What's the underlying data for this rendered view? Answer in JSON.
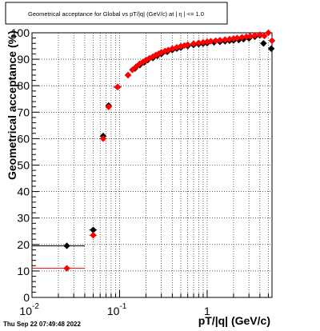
{
  "chart_data": {
    "type": "scatter",
    "title": "Geometrical acceptance for Global vs pT/|q| (GeV/c) at |  η  | <= 1.0",
    "xlabel": "pT/|q| (GeV/c)",
    "ylabel": "Geometrical acceptance (%)",
    "x_scale": "log",
    "xlim": [
      0.01,
      5.5
    ],
    "ylim": [
      0,
      100
    ],
    "grid": true,
    "x_ticks": [
      {
        "value": 0.01,
        "base": "10",
        "exp": "-2"
      },
      {
        "value": 0.1,
        "base": "10",
        "exp": "-1"
      },
      {
        "value": 1,
        "base": "1",
        "exp": ""
      }
    ],
    "y_ticks": [
      0,
      10,
      20,
      30,
      40,
      50,
      60,
      70,
      80,
      90,
      100
    ],
    "timestamp": "Thu Sep 22 07:49:48 2022",
    "series": [
      {
        "color": "#000000",
        "marker": "diamond",
        "points": [
          {
            "x": 0.025,
            "y": 19.5,
            "xerr": [
              0.01,
              0.04
            ]
          },
          {
            "x": 0.05,
            "y": 25.5,
            "xerr": [
              0.045,
              0.055
            ]
          },
          {
            "x": 0.065,
            "y": 61.0,
            "xerr": [
              0.06,
              0.07
            ]
          },
          {
            "x": 0.075,
            "y": 72.5,
            "xerr": [
              0.07,
              0.08
            ]
          },
          {
            "x": 0.095,
            "y": 79.5,
            "xerr": [
              0.085,
              0.105
            ]
          },
          {
            "x": 0.125,
            "y": 84.0
          },
          {
            "x": 0.15,
            "y": 86.5
          },
          {
            "x": 0.17,
            "y": 87.8
          },
          {
            "x": 0.19,
            "y": 88.8
          },
          {
            "x": 0.21,
            "y": 89.7
          },
          {
            "x": 0.24,
            "y": 90.5
          },
          {
            "x": 0.27,
            "y": 91.3
          },
          {
            "x": 0.3,
            "y": 92.0
          },
          {
            "x": 0.35,
            "y": 92.8
          },
          {
            "x": 0.4,
            "y": 93.5
          },
          {
            "x": 0.45,
            "y": 94.0
          },
          {
            "x": 0.5,
            "y": 94.4
          },
          {
            "x": 0.6,
            "y": 95.0
          },
          {
            "x": 0.7,
            "y": 95.4
          },
          {
            "x": 0.8,
            "y": 95.7
          },
          {
            "x": 0.9,
            "y": 95.9
          },
          {
            "x": 1.0,
            "y": 96.1
          },
          {
            "x": 1.2,
            "y": 96.4
          },
          {
            "x": 1.4,
            "y": 96.6
          },
          {
            "x": 1.6,
            "y": 96.8
          },
          {
            "x": 1.8,
            "y": 97.0
          },
          {
            "x": 2.0,
            "y": 97.1
          },
          {
            "x": 2.3,
            "y": 97.3
          },
          {
            "x": 2.6,
            "y": 97.6
          },
          {
            "x": 3.0,
            "y": 97.9
          },
          {
            "x": 3.5,
            "y": 98.5
          },
          {
            "x": 4.0,
            "y": 99.0
          },
          {
            "x": 4.4,
            "y": 96.0
          },
          {
            "x": 5.4,
            "y": 94.0
          }
        ]
      },
      {
        "color": "#ff0000",
        "marker": "diamond",
        "points": [
          {
            "x": 0.025,
            "y": 11.0,
            "xerr": [
              0.01,
              0.04
            ]
          },
          {
            "x": 0.05,
            "y": 23.5,
            "xerr": [
              0.045,
              0.055
            ]
          },
          {
            "x": 0.065,
            "y": 60.0,
            "xerr": [
              0.06,
              0.07
            ]
          },
          {
            "x": 0.075,
            "y": 72.0,
            "xerr": [
              0.07,
              0.08
            ]
          },
          {
            "x": 0.095,
            "y": 79.5,
            "xerr": [
              0.085,
              0.105
            ]
          },
          {
            "x": 0.125,
            "y": 84.0
          },
          {
            "x": 0.14,
            "y": 86.0
          },
          {
            "x": 0.155,
            "y": 87.2
          },
          {
            "x": 0.17,
            "y": 88.3
          },
          {
            "x": 0.185,
            "y": 89.0
          },
          {
            "x": 0.2,
            "y": 89.7
          },
          {
            "x": 0.22,
            "y": 90.4
          },
          {
            "x": 0.24,
            "y": 91.0
          },
          {
            "x": 0.26,
            "y": 91.6
          },
          {
            "x": 0.28,
            "y": 92.1
          },
          {
            "x": 0.3,
            "y": 92.6
          },
          {
            "x": 0.33,
            "y": 93.1
          },
          {
            "x": 0.36,
            "y": 93.5
          },
          {
            "x": 0.4,
            "y": 94.0
          },
          {
            "x": 0.45,
            "y": 94.5
          },
          {
            "x": 0.5,
            "y": 94.9
          },
          {
            "x": 0.55,
            "y": 95.2
          },
          {
            "x": 0.6,
            "y": 95.5
          },
          {
            "x": 0.7,
            "y": 95.9
          },
          {
            "x": 0.8,
            "y": 96.2
          },
          {
            "x": 0.9,
            "y": 96.4
          },
          {
            "x": 1.0,
            "y": 96.6
          },
          {
            "x": 1.1,
            "y": 96.8
          },
          {
            "x": 1.25,
            "y": 97.0
          },
          {
            "x": 1.4,
            "y": 97.2
          },
          {
            "x": 1.6,
            "y": 97.4
          },
          {
            "x": 1.8,
            "y": 97.6
          },
          {
            "x": 2.0,
            "y": 97.8
          },
          {
            "x": 2.2,
            "y": 98.0
          },
          {
            "x": 2.5,
            "y": 98.3
          },
          {
            "x": 2.8,
            "y": 98.5
          },
          {
            "x": 3.1,
            "y": 98.7
          },
          {
            "x": 3.5,
            "y": 99.0
          },
          {
            "x": 4.0,
            "y": 99.3
          },
          {
            "x": 4.5,
            "y": 98.8
          },
          {
            "x": 5.0,
            "y": 100.0
          },
          {
            "x": 5.5,
            "y": 97.0
          }
        ]
      }
    ]
  }
}
